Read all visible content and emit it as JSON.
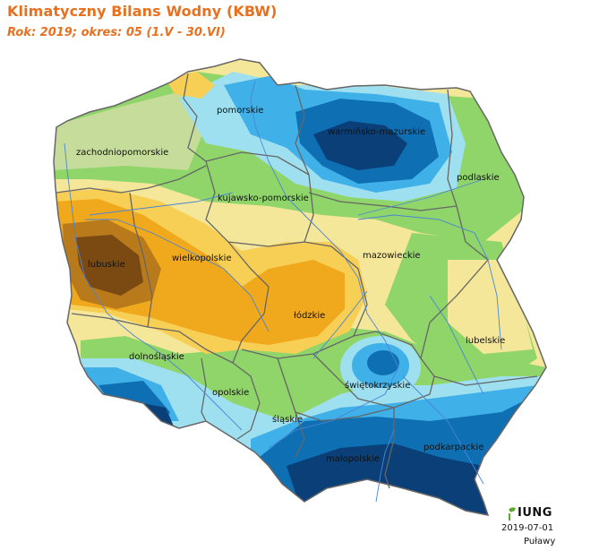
{
  "header": {
    "title": "Klimatyczny Bilans Wodny (KBW)",
    "subtitle": "Rok: 2019; okres: 05 (1.V - 30.VI)"
  },
  "map": {
    "regions": [
      {
        "id": "zachodniopomorskie",
        "label": "zachodniopomorskie"
      },
      {
        "id": "pomorskie",
        "label": "pomorskie"
      },
      {
        "id": "warminsko-mazurskie",
        "label": "warmińsko-mazurskie"
      },
      {
        "id": "podlaskie",
        "label": "podlaskie"
      },
      {
        "id": "kujawsko-pomorskie",
        "label": "kujawsko-pomorskie"
      },
      {
        "id": "lubuskie",
        "label": "lubuskie"
      },
      {
        "id": "wielkopolskie",
        "label": "wielkopolskie"
      },
      {
        "id": "mazowieckie",
        "label": "mazowieckie"
      },
      {
        "id": "lodzkie",
        "label": "łódzkie"
      },
      {
        "id": "lubelskie",
        "label": "lubelskie"
      },
      {
        "id": "dolnoslaskie",
        "label": "dolnośląskie"
      },
      {
        "id": "opolskie",
        "label": "opolskie"
      },
      {
        "id": "swietokrzyskie",
        "label": "świętokrzyskie"
      },
      {
        "id": "slaskie",
        "label": "śląskie"
      },
      {
        "id": "malopolskie",
        "label": "małopolskie"
      },
      {
        "id": "podkarpackie",
        "label": "podkarpackie"
      }
    ],
    "colors": {
      "very_dry": "#7a4a12",
      "dry_dark": "#b97a1c",
      "dry": "#f0a91c",
      "moderately_dry": "#f7cf55",
      "slightly_dry": "#f5e79a",
      "neutral": "#c6dc9a",
      "slightly_wet": "#8fd56a",
      "wet": "#9fe0f0",
      "wetter": "#3fb0e8",
      "very_wet": "#0f6fb3",
      "extremely_wet": "#0a3f78",
      "border": "#666666",
      "river": "#4a86d4"
    }
  },
  "footer": {
    "logo_text": "IUNG",
    "date": "2019-07-01",
    "place": "Puławy"
  }
}
